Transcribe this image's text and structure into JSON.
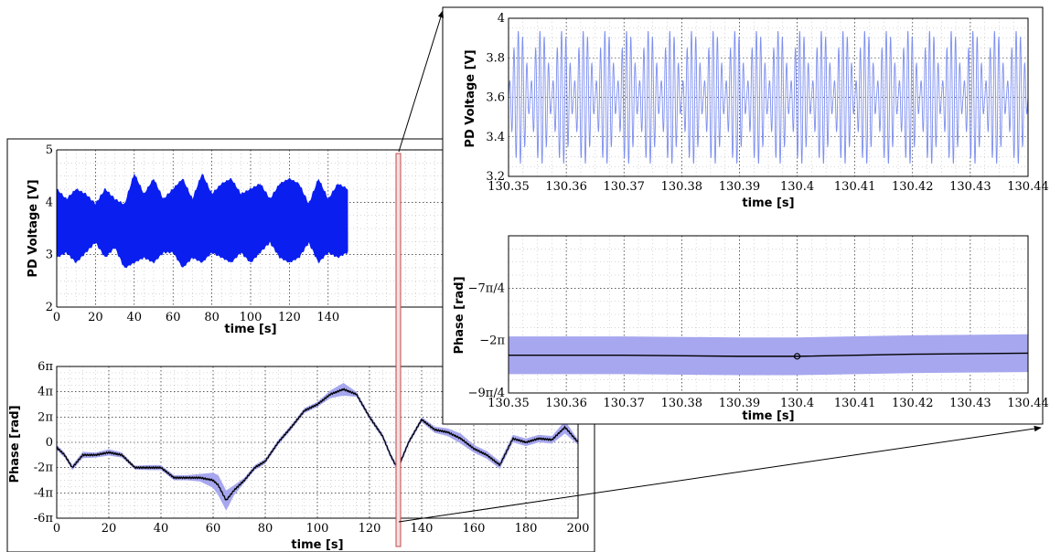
{
  "chart_data": [
    {
      "id": "overview-voltage",
      "type": "area",
      "title": "",
      "xlabel": "time [s]",
      "ylabel": "PD Voltage [V]",
      "xlim": [
        0,
        200
      ],
      "ylim": [
        2,
        5
      ],
      "xticks": [
        0,
        20,
        40,
        60,
        80,
        100,
        120,
        140
      ],
      "yticks": [
        2,
        3,
        4,
        5
      ],
      "grid": true,
      "series": [
        {
          "color": "#0a1ef0",
          "x": [
            0,
            5,
            10,
            15,
            20,
            25,
            30,
            35,
            40,
            45,
            50,
            55,
            60,
            65,
            70,
            75,
            80,
            85,
            90,
            95,
            100,
            105,
            110,
            115,
            120,
            125,
            130,
            135,
            140,
            145,
            150
          ],
          "upper": [
            4.3,
            4.1,
            4.3,
            4.2,
            4.0,
            4.3,
            4.1,
            4.0,
            4.6,
            4.2,
            4.5,
            4.1,
            4.3,
            4.5,
            4.1,
            4.6,
            4.2,
            4.4,
            4.5,
            4.2,
            4.3,
            4.4,
            4.1,
            4.4,
            4.5,
            4.4,
            4.0,
            4.5,
            4.1,
            4.4,
            4.3
          ],
          "lower": [
            2.9,
            3.0,
            2.8,
            3.0,
            3.2,
            2.9,
            3.1,
            2.7,
            2.8,
            2.9,
            2.8,
            3.0,
            3.0,
            2.7,
            2.9,
            2.8,
            3.0,
            2.9,
            2.8,
            3.0,
            2.8,
            3.0,
            3.2,
            2.9,
            2.8,
            2.9,
            3.2,
            2.8,
            3.0,
            2.9,
            3.0
          ]
        }
      ],
      "highlight_window": [
        130.35,
        130.44
      ]
    },
    {
      "id": "overview-phase",
      "type": "line",
      "title": "",
      "xlabel": "time [s]",
      "ylabel": "Phase [rad]",
      "xlim": [
        0,
        200
      ],
      "ylim_pi": [
        -6,
        6
      ],
      "xticks": [
        0,
        20,
        40,
        60,
        80,
        100,
        120,
        140,
        160,
        180,
        200
      ],
      "yticks": [
        "-6π",
        "-4π",
        "-2π",
        "0",
        "2π",
        "4π",
        "6π"
      ],
      "grid": true,
      "series": [
        {
          "line_color": "#000000",
          "band_color": "#a7a7ef",
          "x": [
            0,
            3,
            6,
            10,
            15,
            20,
            25,
            30,
            35,
            40,
            45,
            50,
            55,
            60,
            62,
            65,
            68,
            72,
            76,
            80,
            85,
            90,
            95,
            100,
            105,
            110,
            115,
            120,
            125,
            128,
            130,
            132,
            135,
            140,
            145,
            150,
            155,
            160,
            165,
            170,
            175,
            180,
            185,
            190,
            195,
            200
          ],
          "y_pi": [
            -0.4,
            -1.0,
            -2.0,
            -1.0,
            -1.0,
            -0.8,
            -1.0,
            -2.0,
            -2.0,
            -2.0,
            -2.8,
            -2.8,
            -2.8,
            -3.0,
            -3.4,
            -4.6,
            -3.8,
            -3.0,
            -2.0,
            -1.5,
            0.0,
            1.2,
            2.5,
            3.0,
            3.8,
            4.2,
            3.8,
            2.0,
            0.5,
            -1.0,
            -1.8,
            -1.5,
            0.0,
            1.8,
            1.0,
            0.8,
            0.3,
            -0.5,
            -1.0,
            -1.8,
            0.3,
            0.0,
            0.3,
            0.2,
            1.2,
            0.0
          ],
          "band_pi": [
            0.2,
            0.2,
            0.2,
            0.25,
            0.2,
            0.25,
            0.2,
            0.15,
            0.2,
            0.2,
            0.2,
            0.2,
            0.3,
            0.6,
            0.8,
            0.8,
            0.4,
            0.2,
            0.2,
            0.2,
            0.2,
            0.2,
            0.2,
            0.2,
            0.3,
            0.5,
            0.2,
            0.2,
            0.2,
            0.2,
            0.2,
            0.2,
            0.2,
            0.2,
            0.25,
            0.3,
            0.4,
            0.3,
            0.3,
            0.3,
            0.3,
            0.3,
            0.3,
            0.3,
            0.5,
            0.2
          ]
        }
      ],
      "highlight_window": [
        130.35,
        130.44
      ]
    },
    {
      "id": "zoom-voltage",
      "type": "line",
      "title": "",
      "xlabel": "time [s]",
      "ylabel": "PD Voltage [V]",
      "xlim": [
        130.35,
        130.44
      ],
      "ylim": [
        3.2,
        4.0
      ],
      "xticks": [
        "130.35",
        "130.36",
        "130.37",
        "130.38",
        "130.39",
        "130.4",
        "130.41",
        "130.42",
        "130.43",
        "130.44"
      ],
      "yticks": [
        "3.2",
        "3.4",
        "3.6",
        "3.8",
        "4"
      ],
      "grid": true,
      "series": [
        {
          "color": "#7d8ff0",
          "mean": 3.6,
          "envelope_period_s": 0.00375,
          "envelope_min": 0.03,
          "envelope_max": 0.34,
          "oscillation_period_s": 0.00075
        }
      ]
    },
    {
      "id": "zoom-phase",
      "type": "line",
      "title": "",
      "xlabel": "time [s]",
      "ylabel": "Phase [rad]",
      "xlim": [
        130.35,
        130.44
      ],
      "ylim_pi": [
        -2.25,
        -1.5
      ],
      "xticks": [
        "130.35",
        "130.36",
        "130.37",
        "130.38",
        "130.39",
        "130.4",
        "130.41",
        "130.42",
        "130.43",
        "130.44"
      ],
      "yticks": [
        "−9π/4",
        "−2π",
        "−7π/4"
      ],
      "ytick_values_pi": [
        -2.25,
        -2.0,
        -1.75
      ],
      "grid": true,
      "series": [
        {
          "line_color": "#000000",
          "band_color": "#a7a7ef",
          "x": [
            130.35,
            130.37,
            130.39,
            130.4,
            130.42,
            130.44
          ],
          "y_pi": [
            -2.07,
            -2.07,
            -2.075,
            -2.075,
            -2.065,
            -2.06
          ],
          "band_pi": [
            0.09,
            0.09,
            0.09,
            0.09,
            0.09,
            0.09
          ],
          "marker_x": 130.4
        }
      ]
    }
  ]
}
